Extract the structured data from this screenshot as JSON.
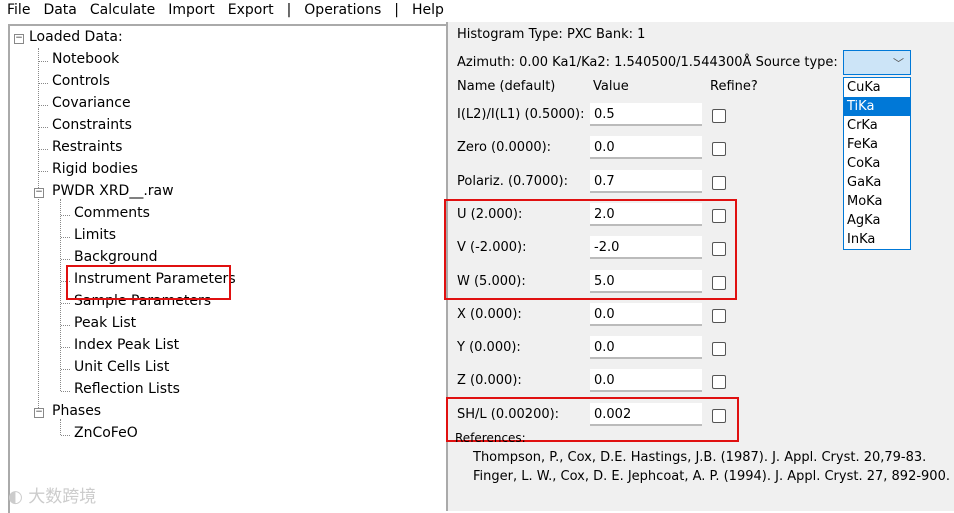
{
  "menu": [
    "File",
    "Data",
    "Calculate",
    "Import",
    "Export",
    "|",
    "Operations",
    "|",
    "Help"
  ],
  "tree": {
    "root": "Loaded Data:",
    "items": [
      "Notebook",
      "Controls",
      "Covariance",
      "Constraints",
      "Restraints",
      "Rigid bodies"
    ],
    "pwdr": "PWDR XRD__.raw",
    "pwdr_children": [
      "Comments",
      "Limits",
      "Background",
      "Instrument Parameters",
      "Sample Parameters",
      "Peak List",
      "Index Peak List",
      "Unit Cells List",
      "Reflection Lists"
    ],
    "phases": "Phases",
    "phase_children": [
      "ZnCoFeO"
    ],
    "selected": "Instrument Parameters"
  },
  "panel": {
    "histogram": "Histogram Type: PXC  Bank: 1",
    "azimuth": "Azimuth: 0.00   Ka1/Ka2: 1.540500/1.544300Å  Source type:",
    "headers": [
      "Name (default)",
      "Value",
      "Refine?"
    ],
    "params": [
      {
        "name": "I(L2)/I(L1) (0.5000):",
        "value": "0.5",
        "refine": false
      },
      {
        "name": "Zero (0.0000):",
        "value": "0.0",
        "refine": false
      },
      {
        "name": "Polariz. (0.7000):",
        "value": "0.7",
        "refine": false
      },
      {
        "name": "U (2.000):",
        "value": "2.0",
        "refine": false
      },
      {
        "name": "V (-2.000):",
        "value": "-2.0",
        "refine": false
      },
      {
        "name": "W (5.000):",
        "value": "5.0",
        "refine": false
      },
      {
        "name": "X (0.000):",
        "value": "0.0",
        "refine": false
      },
      {
        "name": "Y (0.000):",
        "value": "0.0",
        "refine": false
      },
      {
        "name": "Z (0.000):",
        "value": "0.0",
        "refine": false
      },
      {
        "name": "SH/L (0.00200):",
        "value": "0.002",
        "refine": false
      }
    ],
    "references_label": "References:",
    "references": [
      "Thompson, P., Cox, D.E.  Hastings, J.B. (1987). J. Appl. Cryst. 20,79-83.",
      "Finger, L. W., Cox, D. E.  Jephcoat, A. P. (1994). J. Appl. Cryst. 27, 892-900."
    ],
    "source_options": [
      "CuKa",
      "TiKa",
      "CrKa",
      "FeKa",
      "CoKa",
      "GaKa",
      "MoKa",
      "AgKa",
      "InKa"
    ],
    "source_highlighted": "TiKa"
  },
  "watermark": "大数跨境",
  "colors": {
    "highlight": "#0078d7",
    "annotation": "#e01010"
  }
}
